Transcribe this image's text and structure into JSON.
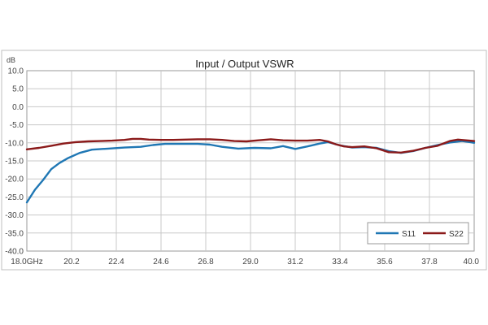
{
  "chart_data": {
    "type": "line",
    "title": "Input / Output VSWR",
    "ylabel": "dB",
    "xlabel": "",
    "ylim": [
      -40,
      10
    ],
    "xlim": [
      18.0,
      40.0
    ],
    "grid": true,
    "legend_position": "bottom-right",
    "y_ticks": [
      "10.0",
      "5.0",
      "0.0",
      "-5.0",
      "-10.0",
      "-15.0",
      "-20.0",
      "-25.0",
      "-30.0",
      "-35.0",
      "-40.0"
    ],
    "x_ticks": [
      "18.0GHz",
      "20.2",
      "22.4",
      "24.6",
      "26.8",
      "29.0",
      "31.2",
      "33.4",
      "35.6",
      "37.8",
      "40.0"
    ],
    "series": [
      {
        "name": "S11",
        "color": "#1f77b4",
        "x": [
          18.0,
          18.4,
          18.8,
          19.2,
          19.6,
          20.0,
          20.6,
          21.2,
          22.0,
          22.8,
          23.6,
          24.2,
          24.8,
          25.6,
          26.4,
          27.0,
          27.6,
          28.4,
          29.2,
          30.0,
          30.6,
          31.2,
          31.8,
          32.4,
          32.8,
          33.4,
          34.0,
          34.6,
          35.2,
          35.8,
          36.4,
          37.0,
          37.6,
          38.2,
          38.8,
          39.4,
          39.8,
          40.0
        ],
        "values": [
          -26.5,
          -23.0,
          -20.3,
          -17.3,
          -15.6,
          -14.3,
          -12.8,
          -11.9,
          -11.6,
          -11.3,
          -11.1,
          -10.6,
          -10.3,
          -10.3,
          -10.3,
          -10.5,
          -11.1,
          -11.6,
          -11.4,
          -11.5,
          -10.9,
          -11.7,
          -11.0,
          -10.2,
          -9.8,
          -10.7,
          -11.3,
          -11.2,
          -11.4,
          -12.3,
          -12.8,
          -12.3,
          -11.4,
          -10.6,
          -9.9,
          -9.5,
          -9.8,
          -10.0
        ]
      },
      {
        "name": "S22",
        "color": "#8b1a1a",
        "x": [
          18.0,
          18.6,
          19.2,
          19.8,
          20.4,
          21.0,
          21.6,
          22.2,
          22.8,
          23.2,
          23.6,
          24.0,
          24.6,
          25.2,
          25.8,
          26.4,
          27.0,
          27.6,
          28.2,
          28.8,
          29.4,
          30.0,
          30.6,
          31.2,
          31.8,
          32.4,
          32.8,
          33.2,
          33.6,
          34.0,
          34.6,
          35.2,
          35.8,
          36.4,
          37.0,
          37.6,
          38.2,
          38.8,
          39.2,
          39.6,
          40.0
        ],
        "values": [
          -11.8,
          -11.4,
          -10.8,
          -10.2,
          -9.8,
          -9.6,
          -9.5,
          -9.4,
          -9.2,
          -8.9,
          -8.9,
          -9.1,
          -9.2,
          -9.2,
          -9.1,
          -9.0,
          -9.0,
          -9.2,
          -9.5,
          -9.6,
          -9.3,
          -9.0,
          -9.3,
          -9.4,
          -9.4,
          -9.2,
          -9.6,
          -10.4,
          -11.0,
          -11.2,
          -11.0,
          -11.5,
          -12.6,
          -12.7,
          -12.2,
          -11.4,
          -10.8,
          -9.5,
          -9.1,
          -9.3,
          -9.5
        ]
      }
    ]
  }
}
